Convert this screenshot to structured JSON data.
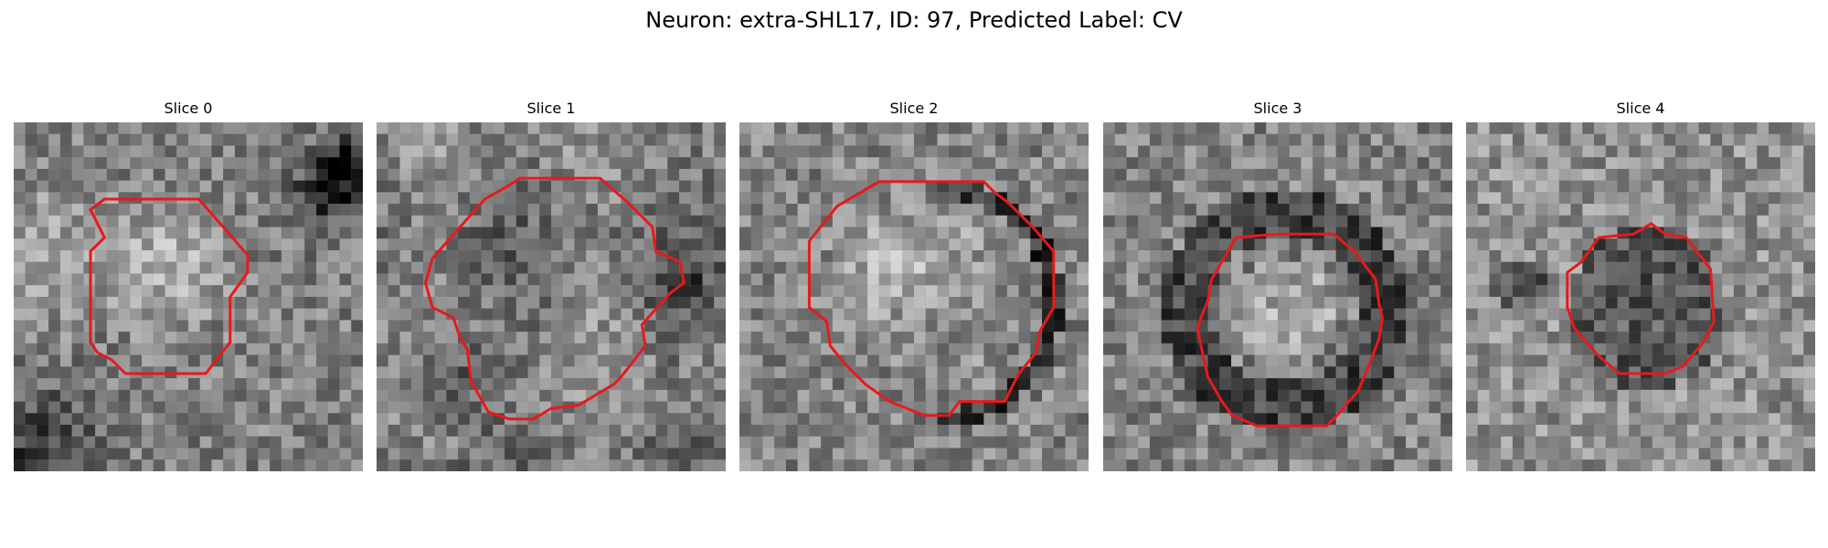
{
  "figure": {
    "title": "Neuron: extra-SHL17, ID: 97, Predicted Label: CV",
    "contour_color": "#e8191b",
    "panels": [
      {
        "title": "Slice 0",
        "cells_x": 30,
        "cells_y": 30,
        "brightness": 128,
        "seed": 17,
        "contour_points": 16,
        "feature": "bright-core",
        "ring": "none"
      },
      {
        "title": "Slice 1",
        "cells_x": 30,
        "cells_y": 30,
        "brightness": 125,
        "seed": 41,
        "contour_points": 28,
        "feature": "mottled",
        "ring": "partial-dark"
      },
      {
        "title": "Slice 2",
        "cells_x": 30,
        "cells_y": 30,
        "brightness": 132,
        "seed": 73,
        "contour_points": 24,
        "feature": "bright-core",
        "ring": "right-dark"
      },
      {
        "title": "Slice 3",
        "cells_x": 30,
        "cells_y": 30,
        "brightness": 130,
        "seed": 97,
        "contour_points": 24,
        "feature": "dark-ring",
        "ring": "dark"
      },
      {
        "title": "Slice 4",
        "cells_x": 30,
        "cells_y": 30,
        "brightness": 145,
        "seed": 131,
        "contour_points": 20,
        "feature": "dark-core",
        "ring": "none"
      }
    ]
  }
}
